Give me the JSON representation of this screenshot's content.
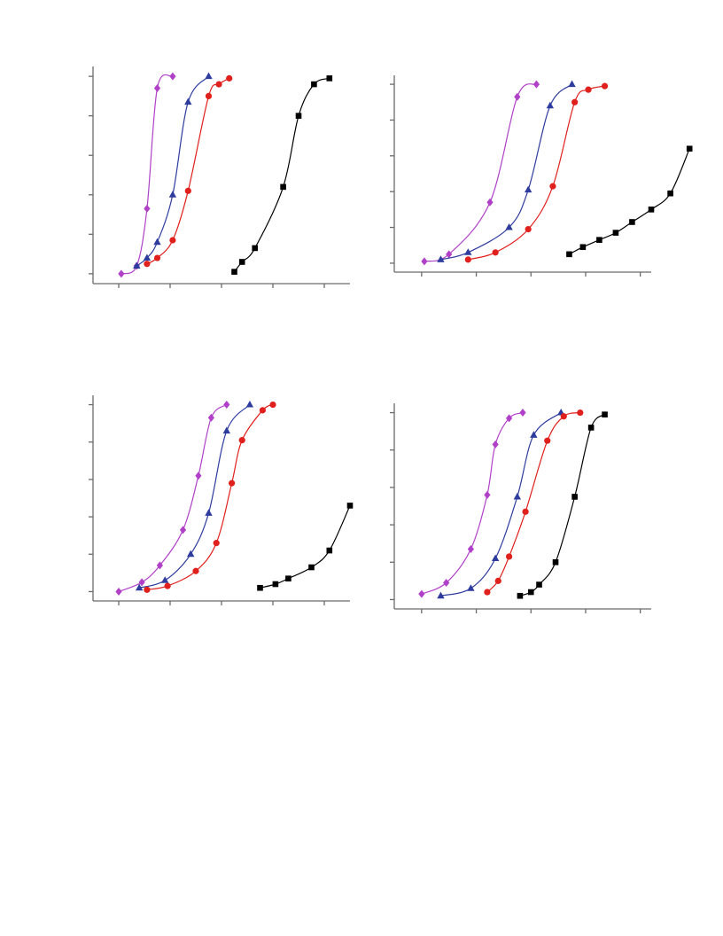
{
  "chart_data": [
    {
      "type": "line",
      "xlim": [
        -0.5,
        4.5
      ],
      "ylim": [
        -0.05,
        1.05
      ],
      "x_ticks": [
        0,
        1,
        2,
        3,
        4
      ],
      "y_ticks": [
        0,
        0.2,
        0.4,
        0.6,
        0.8,
        1.0
      ],
      "series": [
        {
          "marker": "diamond",
          "color": "#b040c8",
          "x": [
            0.05,
            0.35,
            0.55,
            0.75,
            1.05
          ],
          "y": [
            0.0,
            0.04,
            0.33,
            0.94,
            1.0
          ]
        },
        {
          "marker": "triangle",
          "color": "#2e3c9e",
          "x": [
            0.35,
            0.55,
            0.75,
            1.05,
            1.35,
            1.75
          ],
          "y": [
            0.04,
            0.08,
            0.16,
            0.4,
            0.87,
            1.0
          ]
        },
        {
          "marker": "circle",
          "color": "#e0201c",
          "x": [
            0.55,
            0.75,
            1.05,
            1.35,
            1.75,
            1.95,
            2.15
          ],
          "y": [
            0.05,
            0.08,
            0.17,
            0.42,
            0.9,
            0.96,
            0.99
          ]
        },
        {
          "marker": "square",
          "color": "#000000",
          "x": [
            2.25,
            2.4,
            2.65,
            3.2,
            3.5,
            3.8,
            4.1
          ],
          "y": [
            0.01,
            0.06,
            0.13,
            0.44,
            0.8,
            0.96,
            0.99
          ]
        }
      ]
    },
    {
      "type": "line",
      "xlim": [
        -0.5,
        4.2
      ],
      "ylim": [
        -0.05,
        1.05
      ],
      "x_ticks": [
        0,
        1,
        2,
        3,
        4
      ],
      "y_ticks": [
        0,
        0.2,
        0.4,
        0.6,
        0.8,
        1.0
      ],
      "series": [
        {
          "marker": "diamond",
          "color": "#b040c8",
          "x": [
            0.05,
            0.5,
            1.25,
            1.75,
            2.1
          ],
          "y": [
            0.01,
            0.05,
            0.34,
            0.93,
            1.0
          ]
        },
        {
          "marker": "triangle",
          "color": "#2e3c9e",
          "x": [
            0.35,
            0.85,
            1.6,
            1.95,
            2.35,
            2.75
          ],
          "y": [
            0.02,
            0.06,
            0.2,
            0.41,
            0.88,
            1.0
          ]
        },
        {
          "marker": "circle",
          "color": "#e0201c",
          "x": [
            0.85,
            1.35,
            1.95,
            2.4,
            2.8,
            3.05,
            3.35
          ],
          "y": [
            0.02,
            0.06,
            0.19,
            0.43,
            0.9,
            0.97,
            0.99
          ]
        },
        {
          "marker": "square",
          "color": "#000000",
          "x": [
            2.7,
            2.95,
            3.25,
            3.55,
            3.85,
            4.2,
            4.55,
            4.9
          ],
          "y": [
            0.05,
            0.09,
            0.13,
            0.17,
            0.23,
            0.3,
            0.39,
            0.64
          ]
        }
      ]
    },
    {
      "type": "line",
      "xlim": [
        -0.5,
        4.5
      ],
      "ylim": [
        -0.05,
        1.05
      ],
      "x_ticks": [
        0,
        1,
        2,
        3,
        4
      ],
      "y_ticks": [
        0,
        0.2,
        0.4,
        0.6,
        0.8,
        1.0
      ],
      "series": [
        {
          "marker": "diamond",
          "color": "#b040c8",
          "x": [
            0.0,
            0.45,
            0.8,
            1.25,
            1.55,
            1.8,
            2.1
          ],
          "y": [
            0.0,
            0.05,
            0.14,
            0.33,
            0.62,
            0.93,
            1.0
          ]
        },
        {
          "marker": "triangle",
          "color": "#2e3c9e",
          "x": [
            0.4,
            0.9,
            1.4,
            1.75,
            2.1,
            2.55
          ],
          "y": [
            0.02,
            0.06,
            0.2,
            0.42,
            0.86,
            1.0
          ]
        },
        {
          "marker": "circle",
          "color": "#e0201c",
          "x": [
            0.55,
            0.95,
            1.5,
            1.9,
            2.2,
            2.4,
            2.8,
            3.0
          ],
          "y": [
            0.01,
            0.03,
            0.11,
            0.26,
            0.58,
            0.81,
            0.97,
            1.0
          ]
        },
        {
          "marker": "square",
          "color": "#000000",
          "x": [
            2.75,
            3.05,
            3.3,
            3.75,
            4.1,
            4.5
          ],
          "y": [
            0.02,
            0.04,
            0.07,
            0.13,
            0.22,
            0.46
          ]
        }
      ]
    },
    {
      "type": "line",
      "xlim": [
        -0.5,
        4.2
      ],
      "ylim": [
        -0.05,
        1.05
      ],
      "x_ticks": [
        0,
        1,
        2,
        3,
        4
      ],
      "y_ticks": [
        0,
        0.2,
        0.4,
        0.6,
        0.8,
        1.0
      ],
      "series": [
        {
          "marker": "diamond",
          "color": "#b040c8",
          "x": [
            0.0,
            0.45,
            0.9,
            1.2,
            1.35,
            1.6,
            1.85
          ],
          "y": [
            0.03,
            0.09,
            0.27,
            0.56,
            0.83,
            0.97,
            1.0
          ]
        },
        {
          "marker": "triangle",
          "color": "#2e3c9e",
          "x": [
            0.35,
            0.9,
            1.35,
            1.75,
            2.05,
            2.55
          ],
          "y": [
            0.02,
            0.06,
            0.22,
            0.55,
            0.88,
            1.0
          ]
        },
        {
          "marker": "circle",
          "color": "#e0201c",
          "x": [
            1.2,
            1.4,
            1.6,
            1.9,
            2.3,
            2.6,
            2.9
          ],
          "y": [
            0.04,
            0.1,
            0.23,
            0.47,
            0.85,
            0.98,
            1.0
          ]
        },
        {
          "marker": "square",
          "color": "#000000",
          "x": [
            1.8,
            2.0,
            2.15,
            2.45,
            2.8,
            3.1,
            3.35
          ],
          "y": [
            0.02,
            0.04,
            0.08,
            0.2,
            0.55,
            0.92,
            0.99
          ]
        }
      ]
    }
  ]
}
